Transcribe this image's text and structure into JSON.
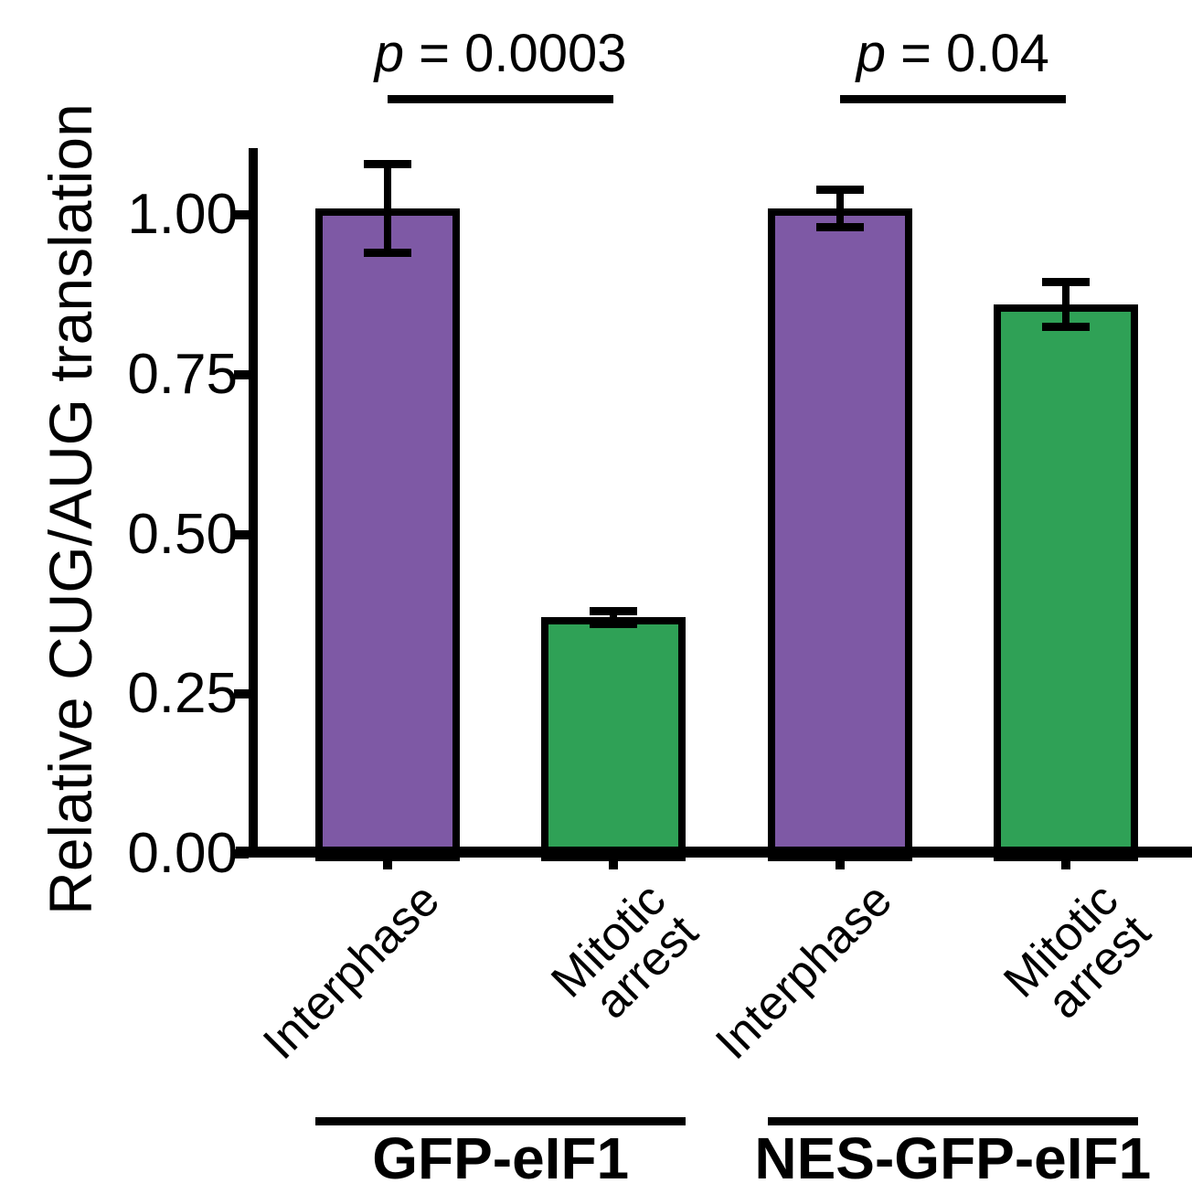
{
  "chart_data": {
    "type": "bar",
    "title": "",
    "xlabel": "",
    "ylabel": "Relative CUG/AUG translation",
    "ylim": [
      0,
      1.09
    ],
    "grid": false,
    "legend": "none",
    "y_axis": {
      "ticks": [
        {
          "label": "0.00",
          "value": 0
        },
        {
          "label": "0.25",
          "value": 0.25
        },
        {
          "label": "0.50",
          "value": 0.5
        },
        {
          "label": "0.75",
          "value": 0.75
        },
        {
          "label": "1.00",
          "value": 1.0
        }
      ]
    },
    "colors": {
      "Interphase": "#7E59A5",
      "Mitotic arrest": "#2FA156",
      "axis": "#000000"
    },
    "groups": [
      {
        "label": "GFP-eIF1",
        "p_value": {
          "italic": "p",
          "rest": " = 0.0003"
        },
        "bars": [
          {
            "condition": "Interphase",
            "value": 1.01,
            "error": 0.07
          },
          {
            "condition": "Mitotic arrest",
            "value": 0.37,
            "error": 0.01
          }
        ]
      },
      {
        "label": "NES-GFP-eIF1",
        "p_value": {
          "italic": "p",
          "rest": " = 0.04"
        },
        "bars": [
          {
            "condition": "Interphase",
            "value": 1.01,
            "error": 0.03
          },
          {
            "condition": "Mitotic arrest",
            "value": 0.86,
            "error": 0.035
          }
        ]
      }
    ]
  }
}
